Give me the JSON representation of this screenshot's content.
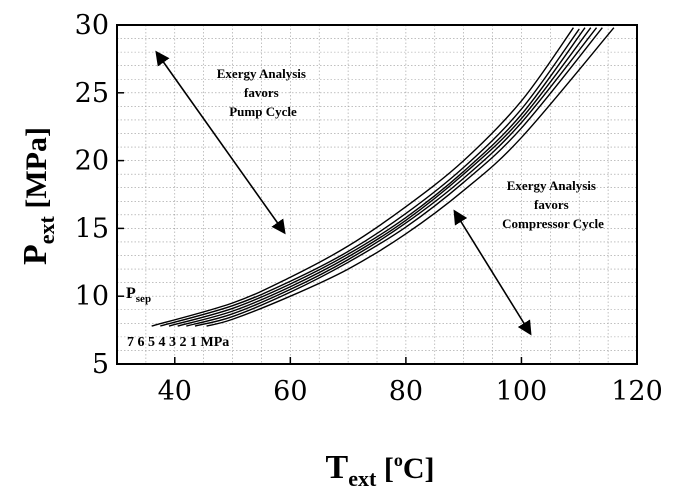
{
  "chart_data": {
    "type": "line",
    "title": "",
    "xlabel": {
      "main": "T",
      "sub": "ext",
      "unit_open": " [",
      "unit_sup": "o",
      "unit_rest": "C]"
    },
    "ylabel": {
      "main": "P",
      "sub": "ext",
      "unit": " [MPa]"
    },
    "xlim": [
      30,
      120
    ],
    "ylim": [
      5,
      30
    ],
    "x_ticks": [
      40,
      60,
      80,
      100,
      120
    ],
    "y_ticks": [
      5,
      10,
      15,
      20,
      25,
      30
    ],
    "grid": true,
    "legend": "none",
    "series": [
      {
        "label": "7",
        "x": [
          36,
          50,
          60,
          70,
          80,
          90,
          100,
          109
        ],
        "y": [
          7.8,
          9.5,
          11.4,
          13.7,
          16.6,
          20.0,
          24.4,
          29.8
        ]
      },
      {
        "label": "6",
        "x": [
          37.5,
          50,
          60,
          70,
          80,
          90,
          100,
          110
        ],
        "y": [
          7.8,
          9.3,
          11.1,
          13.3,
          16.1,
          19.5,
          23.8,
          29.7
        ]
      },
      {
        "label": "5",
        "x": [
          39,
          50,
          60,
          70,
          80,
          90,
          100,
          111
        ],
        "y": [
          7.8,
          9.1,
          10.9,
          13.1,
          15.8,
          19.2,
          23.4,
          29.8
        ]
      },
      {
        "label": "4",
        "x": [
          40.5,
          50,
          60,
          70,
          80,
          90,
          100,
          112
        ],
        "y": [
          7.8,
          8.9,
          10.7,
          12.9,
          15.6,
          19.0,
          23.1,
          29.8
        ]
      },
      {
        "label": "3",
        "x": [
          42,
          50,
          60,
          70,
          80,
          90,
          100,
          113
        ],
        "y": [
          7.8,
          8.7,
          10.5,
          12.7,
          15.4,
          18.7,
          22.8,
          29.8
        ]
      },
      {
        "label": "2",
        "x": [
          43.5,
          50,
          60,
          70,
          80,
          90,
          100,
          114
        ],
        "y": [
          7.8,
          8.5,
          10.3,
          12.5,
          15.1,
          18.4,
          22.4,
          29.8
        ]
      },
      {
        "label": "1",
        "x": [
          45.5,
          50,
          60,
          70,
          80,
          90,
          100,
          116
        ],
        "y": [
          7.8,
          8.3,
          10.0,
          12.0,
          14.6,
          17.8,
          21.7,
          29.8
        ]
      }
    ],
    "curve_labels_text": "7 6 5 4 3 2 1 MPa",
    "psep_label": {
      "main": "P",
      "sub": "sep"
    },
    "annotations": [
      {
        "lines": [
          "Exergy Analysis",
          "favors",
          "Pump Cycle"
        ]
      },
      {
        "lines": [
          "Exergy Analysis",
          "favors",
          "Compressor Cycle"
        ]
      }
    ]
  }
}
